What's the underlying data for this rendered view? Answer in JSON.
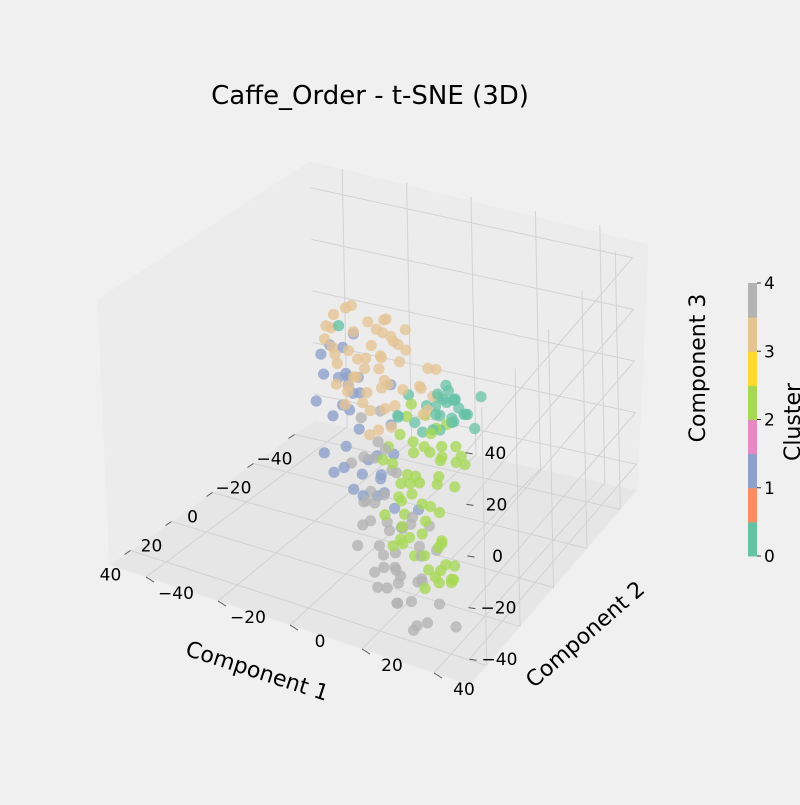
{
  "chart_data": {
    "type": "scatter",
    "projection": "3d",
    "title": "Caffe_Order - t-SNE (3D)",
    "xlabel": "Component 1",
    "ylabel": "Component 2",
    "zlabel": "Component 3",
    "xticks": [
      -40,
      -20,
      0,
      20,
      40
    ],
    "yticks": [
      -40,
      -20,
      0,
      20,
      40
    ],
    "zticks": [
      -40,
      -20,
      0,
      20,
      40
    ],
    "xtick_labels": [
      "−40",
      "−20",
      "0",
      "20",
      "40"
    ],
    "ytick_labels": [
      "−40",
      "−20",
      "0",
      "20",
      "40"
    ],
    "ztick_labels": [
      "−40",
      "−20",
      "0",
      "20",
      "40"
    ],
    "colorbar": {
      "label": "Cluster",
      "ticks": [
        "0",
        "1",
        "2",
        "3",
        "4"
      ],
      "segments": [
        "#66c2a5",
        "#fc8d62",
        "#8da0cb",
        "#e78ac3",
        "#a6d854",
        "#ffd92f",
        "#e5c494",
        "#b3b3b3"
      ]
    },
    "cluster_colors": {
      "0": "#66c2a5",
      "1": "#8da0cb",
      "2": "#a6d854",
      "3": "#e5c494",
      "4": "#b3b3b3"
    },
    "grid": true,
    "legend": "colorbar-right",
    "series": [
      {
        "cluster": 0,
        "color": "#66c2a5",
        "points": [
          [
            24,
            32,
            39
          ],
          [
            21,
            33,
            32
          ],
          [
            29,
            37,
            39
          ],
          [
            26,
            35,
            36
          ],
          [
            19,
            33,
            27
          ],
          [
            18,
            37,
            20
          ],
          [
            22,
            36,
            28
          ],
          [
            30,
            32,
            32
          ],
          [
            14,
            26,
            24
          ],
          [
            17,
            26,
            27
          ],
          [
            23,
            33,
            26
          ],
          [
            26,
            29,
            22
          ],
          [
            18,
            27,
            21
          ],
          [
            28,
            40,
            34
          ],
          [
            19,
            27,
            30
          ],
          [
            10,
            19,
            16
          ],
          [
            24,
            25,
            18
          ],
          [
            -14,
            -20,
            17
          ],
          [
            3,
            10,
            12
          ],
          [
            7,
            20,
            14
          ],
          [
            11,
            16,
            9
          ],
          [
            20,
            32,
            22
          ],
          [
            27,
            35,
            28
          ],
          [
            16,
            28,
            25
          ],
          [
            22,
            29,
            19
          ],
          [
            9,
            10,
            8
          ],
          [
            5,
            8,
            4
          ],
          [
            13,
            27,
            27
          ],
          [
            20,
            40,
            35
          ],
          [
            25,
            38,
            31
          ]
        ]
      },
      {
        "cluster": 1,
        "color": "#8da0cb",
        "points": [
          [
            -39,
            -34,
            -11
          ],
          [
            -35,
            -33,
            -20
          ],
          [
            -38,
            -30,
            -4
          ],
          [
            -40,
            -30,
            -22
          ],
          [
            -33,
            -37,
            -11
          ],
          [
            -31,
            -33,
            -5
          ],
          [
            -30,
            -27,
            -15
          ],
          [
            -34,
            -28,
            -24
          ],
          [
            -26,
            -32,
            -13
          ],
          [
            -27,
            -35,
            -25
          ],
          [
            -24,
            -24,
            -9
          ],
          [
            -22,
            -24,
            -20
          ],
          [
            -20,
            -21,
            -10
          ],
          [
            -12,
            -21,
            -17
          ],
          [
            -15,
            -15,
            -22
          ],
          [
            -9,
            -9,
            -28
          ],
          [
            -12,
            -18,
            -36
          ],
          [
            -15,
            -19,
            -30
          ],
          [
            -19,
            -28,
            -38
          ],
          [
            -4,
            -8,
            -30
          ],
          [
            -12,
            -8,
            -28
          ],
          [
            -6,
            -9,
            -40
          ],
          [
            -15,
            -17,
            -46
          ],
          [
            -3,
            -2,
            -29
          ],
          [
            -3,
            -1,
            -34
          ],
          [
            -1,
            5,
            -44
          ],
          [
            -3,
            9,
            -37
          ],
          [
            -10,
            -2,
            -45
          ],
          [
            -17,
            -24,
            -43
          ],
          [
            -22,
            -14,
            -52
          ],
          [
            -12,
            -16,
            -13
          ],
          [
            -9,
            -2,
            -12
          ],
          [
            -18,
            -7,
            -4
          ],
          [
            -14,
            -14,
            -7
          ],
          [
            -3,
            2,
            -18
          ],
          [
            2,
            1,
            -23
          ]
        ]
      },
      {
        "cluster": 2,
        "color": "#a6d854",
        "points": [
          [
            26,
            30,
            23
          ],
          [
            31,
            31,
            25
          ],
          [
            28,
            38,
            17
          ],
          [
            35,
            36,
            25
          ],
          [
            33,
            35,
            19
          ],
          [
            30,
            40,
            16
          ],
          [
            22,
            31,
            22
          ],
          [
            29,
            37,
            21
          ],
          [
            31,
            29,
            19
          ],
          [
            33,
            34,
            11
          ],
          [
            36,
            30,
            9
          ],
          [
            27,
            36,
            13
          ],
          [
            32,
            38,
            8
          ],
          [
            24,
            30,
            9
          ],
          [
            24,
            27,
            11
          ],
          [
            30,
            32,
            5
          ],
          [
            38,
            34,
            3
          ],
          [
            35,
            35,
            -1
          ],
          [
            38,
            37,
            -10
          ],
          [
            44,
            41,
            -12
          ],
          [
            40,
            38,
            -7
          ],
          [
            45,
            40,
            -14
          ],
          [
            38,
            36,
            -12
          ],
          [
            43,
            34,
            -4
          ],
          [
            47,
            44,
            -14
          ],
          [
            50,
            46,
            -11
          ],
          [
            46,
            40,
            -18
          ],
          [
            42,
            37,
            -20
          ],
          [
            40,
            33,
            -15
          ],
          [
            46,
            36,
            -22
          ],
          [
            35,
            39,
            -20
          ],
          [
            37,
            39,
            -25
          ],
          [
            33,
            30,
            -8
          ],
          [
            11,
            19,
            13
          ],
          [
            14,
            17,
            4
          ],
          [
            9,
            14,
            14
          ],
          [
            12,
            16,
            -2
          ],
          [
            6,
            11,
            6
          ],
          [
            8,
            10,
            0
          ],
          [
            16,
            12,
            -5
          ],
          [
            13,
            17,
            -10
          ],
          [
            7,
            6,
            -7
          ],
          [
            10,
            13,
            -13
          ],
          [
            18,
            18,
            -9
          ],
          [
            10,
            6,
            -10
          ],
          [
            19,
            19,
            -12
          ],
          [
            23,
            24,
            -11
          ],
          [
            21,
            17,
            -14
          ],
          [
            8,
            10,
            -19
          ],
          [
            13,
            12,
            -20
          ],
          [
            17,
            10,
            -25
          ],
          [
            21,
            17,
            -24
          ],
          [
            22,
            21,
            -33
          ],
          [
            24,
            26,
            -35
          ],
          [
            20,
            16,
            -30
          ],
          [
            15,
            14,
            -36
          ],
          [
            17,
            17,
            -31
          ],
          [
            12,
            13,
            -27
          ],
          [
            26,
            17,
            -28
          ]
        ]
      },
      {
        "cluster": 3,
        "color": "#e5c494",
        "points": [
          [
            12,
            23,
            33
          ],
          [
            -11,
            -4,
            27
          ],
          [
            -8,
            -3,
            29
          ],
          [
            -5,
            5,
            30
          ],
          [
            1,
            4,
            31
          ],
          [
            4,
            10,
            30
          ],
          [
            7,
            18,
            28
          ],
          [
            -1,
            5,
            27
          ],
          [
            -11,
            -7,
            22
          ],
          [
            -9,
            -4,
            23
          ],
          [
            -4,
            2,
            25
          ],
          [
            2,
            7,
            23
          ],
          [
            8,
            16,
            21
          ],
          [
            11,
            18,
            23
          ],
          [
            14,
            23,
            24
          ],
          [
            -17,
            -13,
            19
          ],
          [
            -16,
            -19,
            23
          ],
          [
            -24,
            -22,
            18
          ],
          [
            -20,
            -25,
            16
          ],
          [
            -13,
            -15,
            17
          ],
          [
            -10,
            -8,
            16
          ],
          [
            -4,
            -2,
            18
          ],
          [
            3,
            3,
            15
          ],
          [
            6,
            10,
            16
          ],
          [
            -22,
            -27,
            9
          ],
          [
            -17,
            -26,
            8
          ],
          [
            -12,
            -16,
            10
          ],
          [
            -8,
            -9,
            8
          ],
          [
            -5,
            -3,
            12
          ],
          [
            1,
            1,
            10
          ],
          [
            5,
            7,
            8
          ],
          [
            -19,
            -25,
            4
          ],
          [
            -13,
            -20,
            3
          ],
          [
            -9,
            -12,
            3
          ],
          [
            -2,
            -5,
            4
          ],
          [
            3,
            3,
            4
          ],
          [
            7,
            7,
            1
          ],
          [
            -22,
            -26,
            -1
          ],
          [
            -16,
            -17,
            -3
          ],
          [
            -10,
            -15,
            -2
          ],
          [
            -5,
            -8,
            -3
          ],
          [
            0,
            -3,
            -1
          ],
          [
            3,
            1,
            -5
          ],
          [
            -18,
            -20,
            -11
          ],
          [
            -8,
            -15,
            -8
          ],
          [
            -3,
            -5,
            -13
          ],
          [
            -14,
            -21,
            -6
          ],
          [
            -26,
            -31,
            6
          ],
          [
            -7,
            -8,
            13
          ],
          [
            12,
            19,
            14
          ],
          [
            15,
            22,
            19
          ],
          [
            -1,
            0,
            20
          ],
          [
            -6,
            -1,
            6
          ],
          [
            -20,
            -18,
            1
          ]
        ]
      },
      {
        "cluster": 4,
        "color": "#b3b3b3",
        "points": [
          [
            -14,
            -8,
            -12
          ],
          [
            -11,
            -12,
            -14
          ],
          [
            -2,
            -2,
            -14
          ],
          [
            5,
            4,
            -10
          ],
          [
            9,
            8,
            -14
          ],
          [
            0,
            -2,
            -19
          ],
          [
            -5,
            -8,
            -24
          ],
          [
            -9,
            -14,
            -31
          ],
          [
            -3,
            -5,
            -35
          ],
          [
            4,
            0,
            -33
          ],
          [
            11,
            8,
            -36
          ],
          [
            3,
            3,
            -40
          ],
          [
            11,
            5,
            -43
          ],
          [
            9,
            5,
            -48
          ],
          [
            1,
            -3,
            -43
          ],
          [
            -4,
            -7,
            -40
          ],
          [
            14,
            11,
            -47
          ],
          [
            20,
            11,
            -43
          ],
          [
            8,
            -3,
            -48
          ],
          [
            16,
            13,
            -51
          ],
          [
            24,
            14,
            -47
          ],
          [
            28,
            19,
            -48
          ],
          [
            33,
            26,
            -52
          ],
          [
            35,
            28,
            -48
          ],
          [
            22,
            23,
            -42
          ],
          [
            32,
            25,
            -42
          ],
          [
            40,
            25,
            -37
          ],
          [
            43,
            35,
            -38
          ],
          [
            28,
            20,
            -37
          ],
          [
            32,
            28,
            -32
          ],
          [
            20,
            19,
            -23
          ],
          [
            25,
            24,
            -26
          ],
          [
            30,
            27,
            -25
          ],
          [
            14,
            12,
            -10
          ],
          [
            19,
            19,
            -21
          ],
          [
            27,
            28,
            -15
          ],
          [
            33,
            33,
            -18
          ],
          [
            38,
            30,
            -28
          ],
          [
            12,
            4,
            -53
          ],
          [
            6,
            7,
            -55
          ],
          [
            16,
            7,
            -55
          ],
          [
            -2,
            -7,
            -48
          ],
          [
            -8,
            -10,
            -44
          ],
          [
            15,
            14,
            -30
          ],
          [
            45,
            44,
            -34
          ],
          [
            40,
            37,
            -32
          ],
          [
            21,
            15,
            -35
          ],
          [
            6,
            4,
            -27
          ]
        ]
      }
    ]
  }
}
